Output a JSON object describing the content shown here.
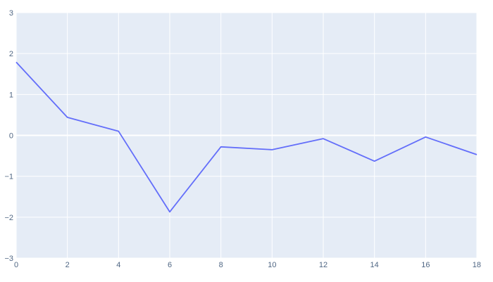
{
  "chart_data": {
    "type": "line",
    "title": "",
    "xlabel": "",
    "ylabel": "",
    "xlim": [
      0,
      18
    ],
    "ylim": [
      -3,
      3
    ],
    "x_ticks": [
      "0",
      "2",
      "4",
      "6",
      "8",
      "10",
      "12",
      "14",
      "16",
      "18"
    ],
    "y_ticks": [
      "3",
      "2",
      "1",
      "0",
      "−1",
      "−2",
      "−3"
    ],
    "grid": true,
    "legend": "none",
    "colors": {
      "plot_background": "#e5ecf6",
      "grid": "#ffffff",
      "line": "#636efa",
      "tick_text": "#506784"
    },
    "series": [
      {
        "x": [
          0,
          2,
          4,
          6,
          8,
          10,
          12,
          14,
          16,
          18
        ],
        "values": [
          1.79,
          0.44,
          0.1,
          -1.87,
          -0.28,
          -0.35,
          -0.08,
          -0.63,
          -0.04,
          -0.47
        ]
      }
    ]
  }
}
